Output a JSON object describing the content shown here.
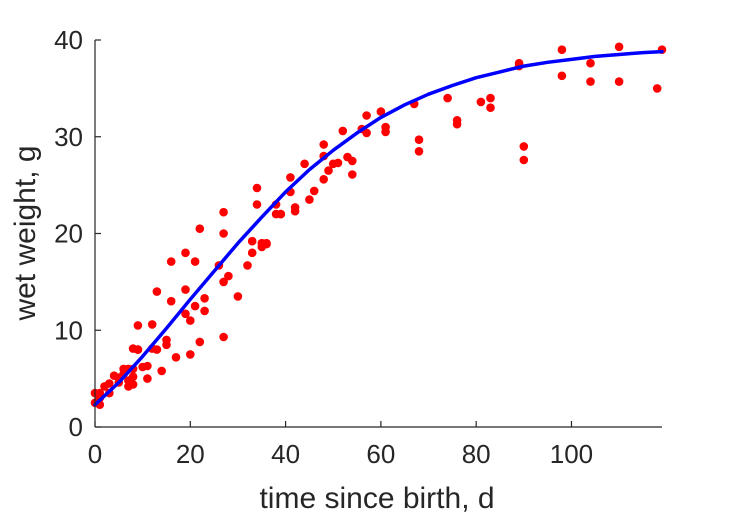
{
  "chart_data": {
    "type": "scatter",
    "title": "",
    "xlabel": "time since birth, d",
    "ylabel": "wet weight, g",
    "xlim": [
      0,
      119
    ],
    "ylim": [
      0,
      40
    ],
    "xticks": [
      "0",
      "20",
      "40",
      "60",
      "80",
      "100"
    ],
    "yticks": [
      "0",
      "10",
      "20",
      "30",
      "40"
    ],
    "xtick_values": [
      0,
      20,
      40,
      60,
      80,
      100
    ],
    "ytick_values": [
      0,
      10,
      20,
      30,
      40
    ],
    "grid": false,
    "legend": "none",
    "colors": {
      "points": "#ff0000",
      "curve": "#0000ff",
      "axes": "#262626"
    },
    "series": [
      {
        "kind": "points",
        "x": [
          0,
          0,
          1,
          1,
          1,
          2,
          3,
          3,
          4,
          5,
          5,
          6,
          6,
          7,
          7,
          7,
          8,
          8,
          8,
          8,
          9,
          9,
          9,
          10,
          11,
          11,
          12,
          12,
          13,
          13,
          14,
          15,
          15,
          16,
          16,
          17,
          19,
          19,
          19,
          20,
          20,
          21,
          21,
          22,
          22,
          23,
          23,
          26,
          27,
          27,
          27,
          27,
          28,
          30,
          32,
          33,
          33,
          34,
          34,
          35,
          35,
          36,
          36,
          38,
          38,
          39,
          39,
          41,
          41,
          42,
          42,
          44,
          45,
          46,
          48,
          48,
          48,
          49,
          50,
          51,
          52,
          53,
          54,
          54,
          56,
          57,
          57,
          60,
          61,
          61,
          67,
          68,
          68,
          74,
          76,
          76,
          81,
          83,
          83,
          89,
          89,
          90,
          90,
          98,
          98,
          104,
          104,
          110,
          110,
          118,
          119
        ],
        "y": [
          3.5,
          2.5,
          2.3,
          3.0,
          3.5,
          4.2,
          3.5,
          4.5,
          5.3,
          5.1,
          4.6,
          6.0,
          5.5,
          6.0,
          4.2,
          4.8,
          4.4,
          5.2,
          8.1,
          6.0,
          8.0,
          8.0,
          10.5,
          6.2,
          6.3,
          5.0,
          10.6,
          8.1,
          14.0,
          8.0,
          5.8,
          8.5,
          9.0,
          13.0,
          17.1,
          7.2,
          14.2,
          18.0,
          11.7,
          11.0,
          7.5,
          12.5,
          17.1,
          20.5,
          8.8,
          13.3,
          12.0,
          16.7,
          15.0,
          20.0,
          22.2,
          9.3,
          15.6,
          13.5,
          16.7,
          19.2,
          18.0,
          23.0,
          24.7,
          18.6,
          19.0,
          19.0,
          18.9,
          22.0,
          23.0,
          22.0,
          22.0,
          25.8,
          24.3,
          22.7,
          22.3,
          27.2,
          23.5,
          24.4,
          25.6,
          28.0,
          29.2,
          26.5,
          27.2,
          27.3,
          30.6,
          27.9,
          26.1,
          27.5,
          30.8,
          32.2,
          30.4,
          32.6,
          30.5,
          31.0,
          33.4,
          29.7,
          28.5,
          34.0,
          31.3,
          31.7,
          33.6,
          33.0,
          34.0,
          37.3,
          37.6,
          27.6,
          29.0,
          39.0,
          36.3,
          37.6,
          35.7,
          39.3,
          35.7,
          35.0,
          39.0
        ]
      },
      {
        "kind": "fitted-curve",
        "x": [
          0,
          5,
          10,
          15,
          20,
          25,
          30,
          35,
          40,
          45,
          50,
          55,
          60,
          65,
          70,
          75,
          80,
          85,
          90,
          95,
          100,
          105,
          110,
          115,
          119
        ],
        "y": [
          2.3,
          4.6,
          7.3,
          10.2,
          13.2,
          16.1,
          19.0,
          21.7,
          24.3,
          26.6,
          28.6,
          30.4,
          32.0,
          33.3,
          34.4,
          35.3,
          36.1,
          36.7,
          37.3,
          37.7,
          38.0,
          38.3,
          38.5,
          38.7,
          38.8
        ]
      }
    ]
  }
}
